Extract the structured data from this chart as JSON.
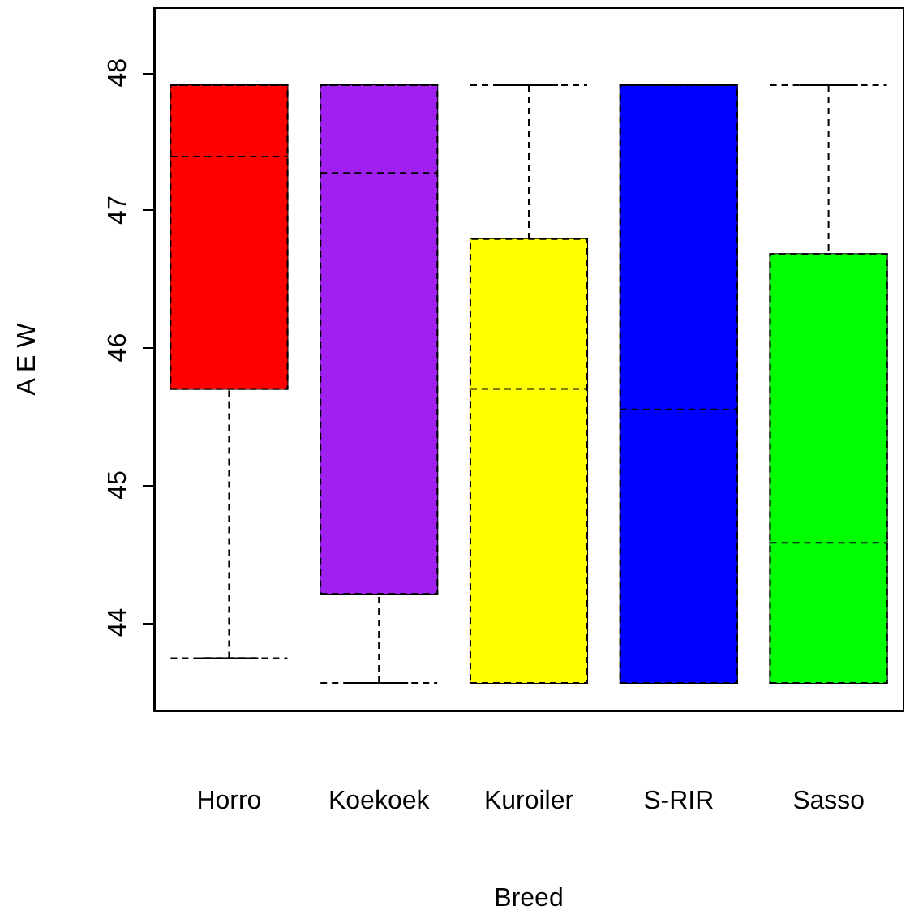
{
  "chart_data": {
    "type": "box",
    "xlabel": "Breed",
    "ylabel": "A E W",
    "categories": [
      "Horro",
      "Koekoek",
      "Kuroiler",
      "S-RIR",
      "Sasso"
    ],
    "colors": [
      "#ff0000",
      "#a020f0",
      "#ffff00",
      "#0000ff",
      "#00ff00"
    ],
    "boxes": [
      {
        "low": 43.74,
        "q1": 45.7,
        "median": 47.39,
        "q3": 47.91,
        "high": 47.91
      },
      {
        "low": 43.56,
        "q1": 44.21,
        "median": 47.27,
        "q3": 47.91,
        "high": 47.91
      },
      {
        "low": 43.56,
        "q1": 43.56,
        "median": 45.7,
        "q3": 46.79,
        "high": 47.91
      },
      {
        "low": 43.56,
        "q1": 43.56,
        "median": 45.55,
        "q3": 47.91,
        "high": 47.91
      },
      {
        "low": 43.56,
        "q1": 43.56,
        "median": 44.58,
        "q3": 46.68,
        "high": 47.91
      }
    ],
    "ylim": [
      43.36,
      48.47
    ],
    "yticks": [
      44,
      45,
      46,
      47,
      48
    ],
    "grid": false
  }
}
